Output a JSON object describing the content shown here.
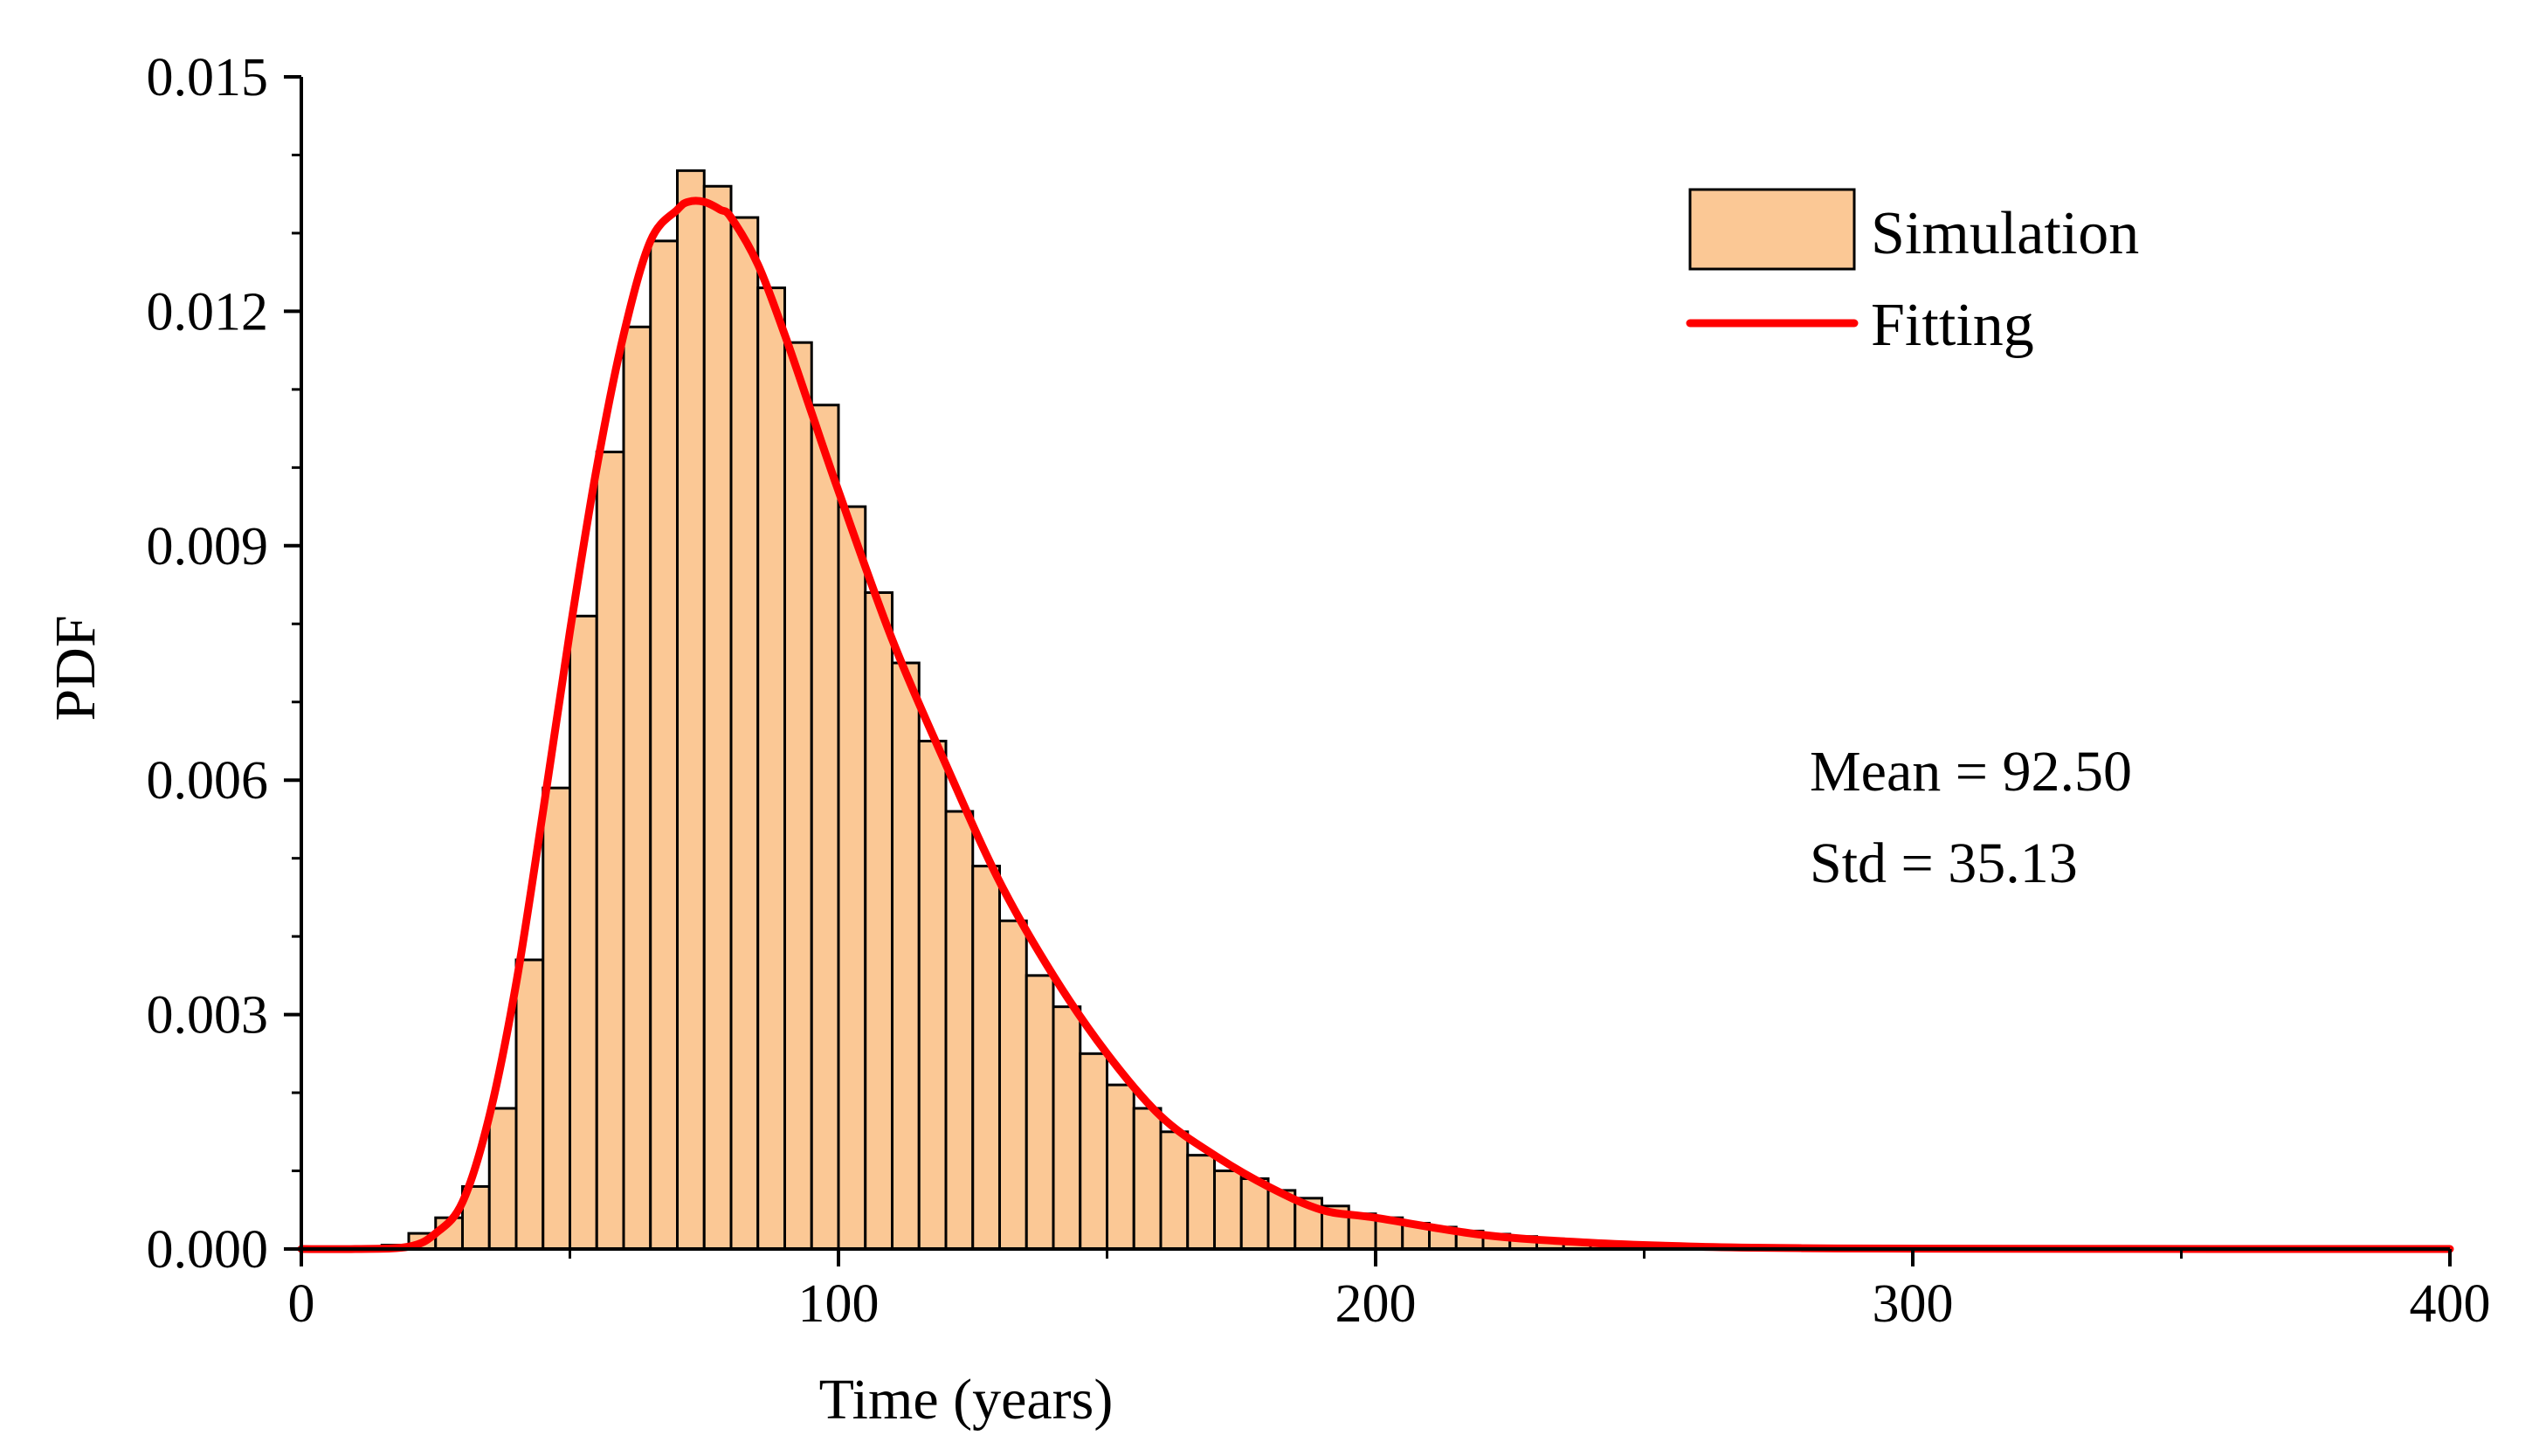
{
  "chart_data": {
    "type": "bar",
    "title": "",
    "xlabel": "Time (years)",
    "ylabel": "PDF",
    "xlim": [
      0,
      400
    ],
    "ylim": [
      0,
      0.015
    ],
    "x_ticks": [
      "0",
      "100",
      "200",
      "300",
      "400"
    ],
    "y_ticks": [
      "0.000",
      "0.003",
      "0.006",
      "0.009",
      "0.012",
      "0.015"
    ],
    "bin_width": 5,
    "series": [
      {
        "name": "Simulation",
        "kind": "histogram",
        "bin_starts": [
          0,
          5,
          10,
          15,
          20,
          25,
          30,
          35,
          40,
          45,
          50,
          55,
          60,
          65,
          70,
          75,
          80,
          85,
          90,
          95,
          100,
          105,
          110,
          115,
          120,
          125,
          130,
          135,
          140,
          145,
          150,
          155,
          160,
          165,
          170,
          175,
          180,
          185,
          190,
          195,
          200,
          205,
          210,
          215,
          220,
          225,
          230,
          235,
          240,
          245,
          250,
          255,
          260,
          265,
          270,
          275,
          280,
          285,
          290,
          295,
          300
        ],
        "values": [
          0,
          0,
          0,
          5e-05,
          0.0002,
          0.0004,
          0.0008,
          0.0018,
          0.0037,
          0.0059,
          0.0081,
          0.0102,
          0.0118,
          0.0129,
          0.0138,
          0.0136,
          0.0132,
          0.0123,
          0.0116,
          0.0108,
          0.0095,
          0.0084,
          0.0075,
          0.0065,
          0.0056,
          0.0049,
          0.0042,
          0.0035,
          0.0031,
          0.0025,
          0.0021,
          0.0018,
          0.0015,
          0.0012,
          0.001,
          0.0009,
          0.00075,
          0.00065,
          0.00055,
          0.00045,
          0.0004,
          0.00033,
          0.00028,
          0.00023,
          0.00019,
          0.00016,
          0.00013,
          0.0001,
          8e-05,
          6e-05,
          5e-05,
          4e-05,
          3e-05,
          2e-05,
          2e-05,
          1e-05,
          1e-05,
          1e-05,
          1e-05,
          5e-06,
          5e-06
        ],
        "color": "#FBC895",
        "edge_color": "#000000"
      },
      {
        "name": "Fitting",
        "kind": "line",
        "x": [
          0,
          10,
          20,
          25,
          30,
          35,
          40,
          45,
          50,
          55,
          60,
          65,
          70,
          72,
          75,
          78,
          80,
          85,
          90,
          95,
          100,
          110,
          120,
          130,
          140,
          150,
          160,
          170,
          180,
          190,
          200,
          220,
          240,
          260,
          280,
          300,
          340,
          400
        ],
        "y": [
          0,
          0,
          3e-05,
          0.0002,
          0.0006,
          0.0017,
          0.0034,
          0.0056,
          0.0079,
          0.01,
          0.0117,
          0.0129,
          0.0133,
          0.0134,
          0.0134,
          0.0133,
          0.0132,
          0.0126,
          0.0117,
          0.0107,
          0.0097,
          0.0078,
          0.0062,
          0.0047,
          0.0035,
          0.0025,
          0.0017,
          0.0012,
          0.0008,
          0.0005,
          0.0004,
          0.00018,
          8e-05,
          3e-05,
          1e-05,
          4e-06,
          1e-06,
          0
        ],
        "color": "#FF0000"
      }
    ],
    "legend": {
      "position": "top-right",
      "items": [
        "Simulation",
        "Fitting"
      ]
    },
    "annotations": {
      "mean": "Mean = 92.50",
      "std": "Std = 35.13"
    }
  }
}
